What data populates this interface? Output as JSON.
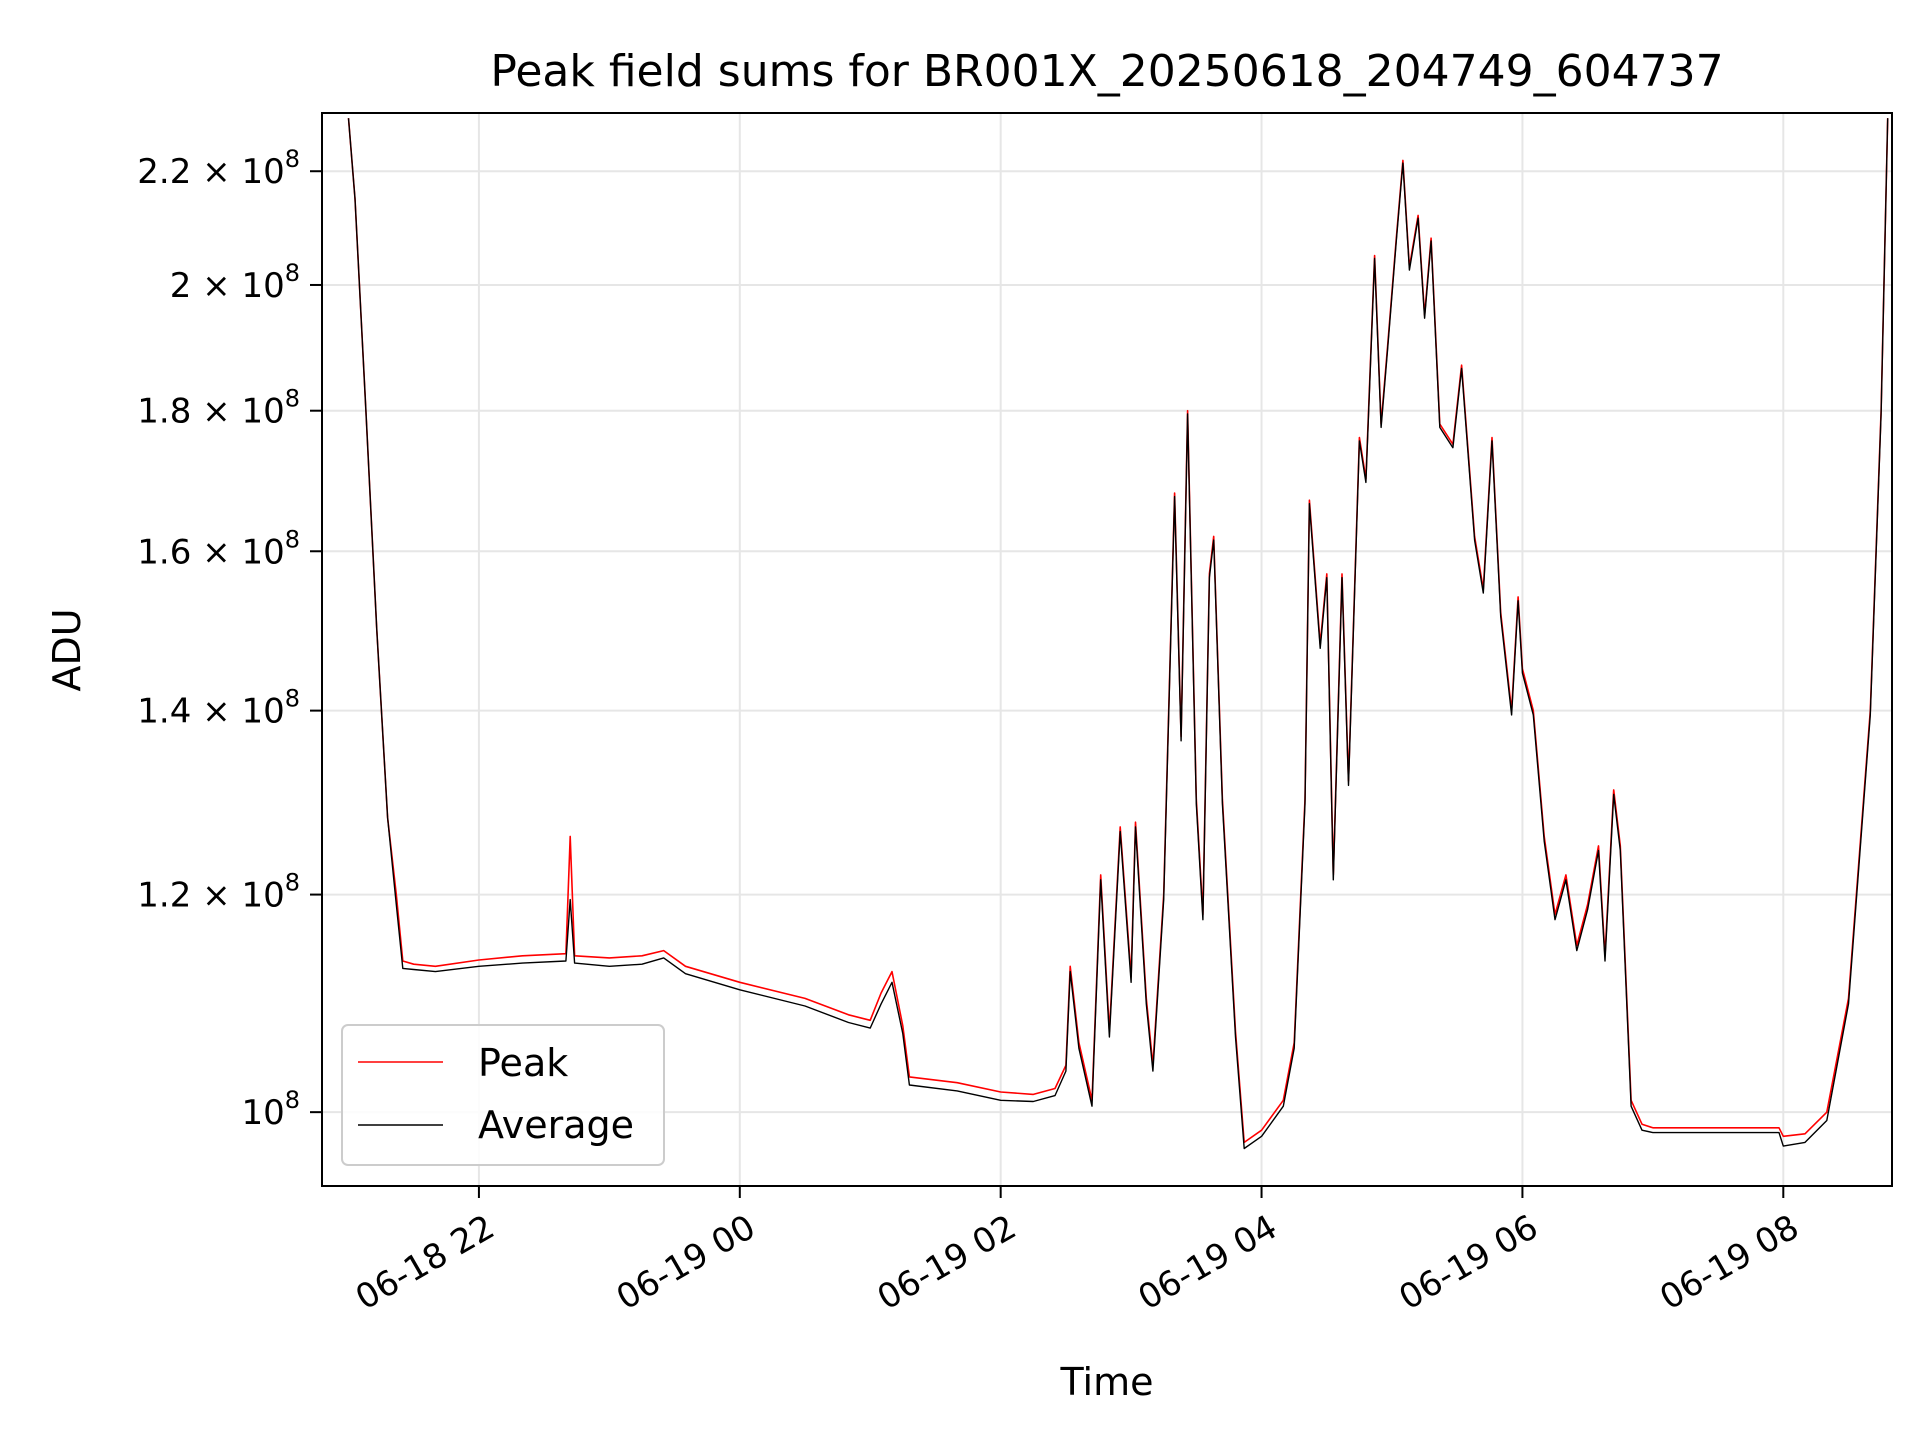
{
  "chart_data": {
    "type": "line",
    "title": "Peak field sums for BR001X_20250618_204749_604737",
    "xlabel": "Time",
    "ylabel": "ADU",
    "yscale": "log",
    "xlim": [
      "2025-06-18 20:47:49",
      "2025-06-19 08:50:00"
    ],
    "ylim": [
      94000000,
      231000000
    ],
    "grid": true,
    "legend_position": "lower-left",
    "x_ticks": [
      {
        "t": "2025-06-18 22:00",
        "label": "06-18 22"
      },
      {
        "t": "2025-06-19 00:00",
        "label": "06-19 00"
      },
      {
        "t": "2025-06-19 02:00",
        "label": "06-19 02"
      },
      {
        "t": "2025-06-19 04:00",
        "label": "06-19 04"
      },
      {
        "t": "2025-06-19 06:00",
        "label": "06-19 06"
      },
      {
        "t": "2025-06-19 08:00",
        "label": "06-19 08"
      }
    ],
    "y_ticks": [
      {
        "value": 100000000,
        "mant": "",
        "exp": "8"
      },
      {
        "value": 120000000,
        "mant": "1.2",
        "exp": "8"
      },
      {
        "value": 140000000,
        "mant": "1.4",
        "exp": "8"
      },
      {
        "value": 160000000,
        "mant": "1.6",
        "exp": "8"
      },
      {
        "value": 180000000,
        "mant": "1.8",
        "exp": "8"
      },
      {
        "value": 200000000,
        "mant": "2",
        "exp": "8"
      },
      {
        "value": 220000000,
        "mant": "2.2",
        "exp": "8"
      }
    ],
    "series": [
      {
        "name": "Peak",
        "color": "#ff0000",
        "points": [
          [
            "2025-06-18 21:00",
            230000000
          ],
          [
            "2025-06-18 21:03",
            215000000
          ],
          [
            "2025-06-18 21:08",
            180000000
          ],
          [
            "2025-06-18 21:13",
            150000000
          ],
          [
            "2025-06-18 21:18",
            128000000
          ],
          [
            "2025-06-18 21:22",
            120000000
          ],
          [
            "2025-06-18 21:25",
            113500000
          ],
          [
            "2025-06-18 21:30",
            113200000
          ],
          [
            "2025-06-18 21:40",
            113000000
          ],
          [
            "2025-06-18 22:00",
            113600000
          ],
          [
            "2025-06-18 22:20",
            114000000
          ],
          [
            "2025-06-18 22:40",
            114200000
          ],
          [
            "2025-06-18 22:42",
            126000000
          ],
          [
            "2025-06-18 22:44",
            114000000
          ],
          [
            "2025-06-18 23:00",
            113800000
          ],
          [
            "2025-06-18 23:15",
            114000000
          ],
          [
            "2025-06-18 23:25",
            114500000
          ],
          [
            "2025-06-18 23:35",
            113000000
          ],
          [
            "2025-06-19 00:00",
            111500000
          ],
          [
            "2025-06-19 00:30",
            110000000
          ],
          [
            "2025-06-19 00:50",
            108500000
          ],
          [
            "2025-06-19 01:00",
            108000000
          ],
          [
            "2025-06-19 01:05",
            110500000
          ],
          [
            "2025-06-19 01:10",
            112500000
          ],
          [
            "2025-06-19 01:15",
            107500000
          ],
          [
            "2025-06-19 01:18",
            103000000
          ],
          [
            "2025-06-19 01:40",
            102500000
          ],
          [
            "2025-06-19 02:00",
            101700000
          ],
          [
            "2025-06-19 02:15",
            101500000
          ],
          [
            "2025-06-19 02:25",
            102000000
          ],
          [
            "2025-06-19 02:30",
            104000000
          ],
          [
            "2025-06-19 02:32",
            113000000
          ],
          [
            "2025-06-19 02:36",
            106000000
          ],
          [
            "2025-06-19 02:42",
            101000000
          ],
          [
            "2025-06-19 02:46",
            122000000
          ],
          [
            "2025-06-19 02:50",
            107000000
          ],
          [
            "2025-06-19 02:55",
            127000000
          ],
          [
            "2025-06-19 03:00",
            112000000
          ],
          [
            "2025-06-19 03:02",
            127500000
          ],
          [
            "2025-06-19 03:07",
            110000000
          ],
          [
            "2025-06-19 03:10",
            104000000
          ],
          [
            "2025-06-19 03:15",
            120000000
          ],
          [
            "2025-06-19 03:20",
            168000000
          ],
          [
            "2025-06-19 03:23",
            137000000
          ],
          [
            "2025-06-19 03:26",
            180000000
          ],
          [
            "2025-06-19 03:30",
            130000000
          ],
          [
            "2025-06-19 03:33",
            118000000
          ],
          [
            "2025-06-19 03:36",
            157000000
          ],
          [
            "2025-06-19 03:38",
            162000000
          ],
          [
            "2025-06-19 03:42",
            130000000
          ],
          [
            "2025-06-19 03:48",
            107000000
          ],
          [
            "2025-06-19 03:52",
            97500000
          ],
          [
            "2025-06-19 04:00",
            98500000
          ],
          [
            "2025-06-19 04:10",
            101000000
          ],
          [
            "2025-06-19 04:15",
            106000000
          ],
          [
            "2025-06-19 04:20",
            130000000
          ],
          [
            "2025-06-19 04:22",
            167000000
          ],
          [
            "2025-06-19 04:27",
            148000000
          ],
          [
            "2025-06-19 04:30",
            157000000
          ],
          [
            "2025-06-19 04:33",
            122000000
          ],
          [
            "2025-06-19 04:37",
            157000000
          ],
          [
            "2025-06-19 04:40",
            132000000
          ],
          [
            "2025-06-19 04:45",
            176000000
          ],
          [
            "2025-06-19 04:48",
            170000000
          ],
          [
            "2025-06-19 04:52",
            205000000
          ],
          [
            "2025-06-19 04:55",
            178000000
          ],
          [
            "2025-06-19 04:58",
            190000000
          ],
          [
            "2025-06-19 05:02",
            208000000
          ],
          [
            "2025-06-19 05:05",
            222000000
          ],
          [
            "2025-06-19 05:08",
            203000000
          ],
          [
            "2025-06-19 05:12",
            212000000
          ],
          [
            "2025-06-19 05:15",
            195000000
          ],
          [
            "2025-06-19 05:18",
            208000000
          ],
          [
            "2025-06-19 05:22",
            178000000
          ],
          [
            "2025-06-19 05:28",
            175000000
          ],
          [
            "2025-06-19 05:32",
            187000000
          ],
          [
            "2025-06-19 05:38",
            162000000
          ],
          [
            "2025-06-19 05:42",
            155000000
          ],
          [
            "2025-06-19 05:46",
            176000000
          ],
          [
            "2025-06-19 05:50",
            152000000
          ],
          [
            "2025-06-19 05:55",
            140000000
          ],
          [
            "2025-06-19 05:58",
            154000000
          ],
          [
            "2025-06-19 06:00",
            145000000
          ],
          [
            "2025-06-19 06:05",
            140000000
          ],
          [
            "2025-06-19 06:10",
            126000000
          ],
          [
            "2025-06-19 06:15",
            118000000
          ],
          [
            "2025-06-19 06:20",
            122000000
          ],
          [
            "2025-06-19 06:25",
            115000000
          ],
          [
            "2025-06-19 06:30",
            119000000
          ],
          [
            "2025-06-19 06:35",
            125000000
          ],
          [
            "2025-06-19 06:38",
            114000000
          ],
          [
            "2025-06-19 06:42",
            131000000
          ],
          [
            "2025-06-19 06:45",
            125000000
          ],
          [
            "2025-06-19 06:50",
            101000000
          ],
          [
            "2025-06-19 06:55",
            99000000
          ],
          [
            "2025-06-19 07:00",
            98700000
          ],
          [
            "2025-06-19 07:30",
            98700000
          ],
          [
            "2025-06-19 07:58",
            98700000
          ],
          [
            "2025-06-19 08:00",
            98000000
          ],
          [
            "2025-06-19 08:10",
            98200000
          ],
          [
            "2025-06-19 08:20",
            100000000
          ],
          [
            "2025-06-19 08:30",
            110000000
          ],
          [
            "2025-06-19 08:40",
            140000000
          ],
          [
            "2025-06-19 08:45",
            180000000
          ],
          [
            "2025-06-19 08:48",
            230000000
          ]
        ]
      },
      {
        "name": "Average",
        "color": "#000000",
        "points": [
          [
            "2025-06-18 21:00",
            230000000
          ],
          [
            "2025-06-18 21:03",
            215000000
          ],
          [
            "2025-06-18 21:08",
            180000000
          ],
          [
            "2025-06-18 21:13",
            150000000
          ],
          [
            "2025-06-18 21:18",
            128000000
          ],
          [
            "2025-06-18 21:22",
            119000000
          ],
          [
            "2025-06-18 21:25",
            112800000
          ],
          [
            "2025-06-18 21:30",
            112700000
          ],
          [
            "2025-06-18 21:40",
            112500000
          ],
          [
            "2025-06-18 22:00",
            113000000
          ],
          [
            "2025-06-18 22:20",
            113300000
          ],
          [
            "2025-06-18 22:40",
            113500000
          ],
          [
            "2025-06-18 22:42",
            119500000
          ],
          [
            "2025-06-18 22:44",
            113300000
          ],
          [
            "2025-06-18 23:00",
            113000000
          ],
          [
            "2025-06-18 23:15",
            113200000
          ],
          [
            "2025-06-18 23:25",
            113800000
          ],
          [
            "2025-06-18 23:35",
            112300000
          ],
          [
            "2025-06-19 00:00",
            110800000
          ],
          [
            "2025-06-19 00:30",
            109300000
          ],
          [
            "2025-06-19 00:50",
            107800000
          ],
          [
            "2025-06-19 01:00",
            107300000
          ],
          [
            "2025-06-19 01:05",
            109500000
          ],
          [
            "2025-06-19 01:10",
            111500000
          ],
          [
            "2025-06-19 01:15",
            106800000
          ],
          [
            "2025-06-19 01:18",
            102300000
          ],
          [
            "2025-06-19 01:40",
            101800000
          ],
          [
            "2025-06-19 02:00",
            101000000
          ],
          [
            "2025-06-19 02:15",
            100900000
          ],
          [
            "2025-06-19 02:25",
            101400000
          ],
          [
            "2025-06-19 02:30",
            103500000
          ],
          [
            "2025-06-19 02:32",
            112500000
          ],
          [
            "2025-06-19 02:36",
            105500000
          ],
          [
            "2025-06-19 02:42",
            100500000
          ],
          [
            "2025-06-19 02:46",
            121500000
          ],
          [
            "2025-06-19 02:50",
            106500000
          ],
          [
            "2025-06-19 02:55",
            126500000
          ],
          [
            "2025-06-19 03:00",
            111500000
          ],
          [
            "2025-06-19 03:02",
            127000000
          ],
          [
            "2025-06-19 03:07",
            109500000
          ],
          [
            "2025-06-19 03:10",
            103500000
          ],
          [
            "2025-06-19 03:15",
            119500000
          ],
          [
            "2025-06-19 03:20",
            167500000
          ],
          [
            "2025-06-19 03:23",
            136500000
          ],
          [
            "2025-06-19 03:26",
            179500000
          ],
          [
            "2025-06-19 03:30",
            129500000
          ],
          [
            "2025-06-19 03:33",
            117500000
          ],
          [
            "2025-06-19 03:36",
            156500000
          ],
          [
            "2025-06-19 03:38",
            161500000
          ],
          [
            "2025-06-19 03:42",
            129500000
          ],
          [
            "2025-06-19 03:48",
            106500000
          ],
          [
            "2025-06-19 03:52",
            97000000
          ],
          [
            "2025-06-19 04:00",
            98000000
          ],
          [
            "2025-06-19 04:10",
            100500000
          ],
          [
            "2025-06-19 04:15",
            105500000
          ],
          [
            "2025-06-19 04:20",
            129500000
          ],
          [
            "2025-06-19 04:22",
            166500000
          ],
          [
            "2025-06-19 04:27",
            147500000
          ],
          [
            "2025-06-19 04:30",
            156500000
          ],
          [
            "2025-06-19 04:33",
            121500000
          ],
          [
            "2025-06-19 04:37",
            156500000
          ],
          [
            "2025-06-19 04:40",
            131500000
          ],
          [
            "2025-06-19 04:45",
            175500000
          ],
          [
            "2025-06-19 04:48",
            169500000
          ],
          [
            "2025-06-19 04:52",
            204500000
          ],
          [
            "2025-06-19 04:55",
            177500000
          ],
          [
            "2025-06-19 04:58",
            189500000
          ],
          [
            "2025-06-19 05:02",
            207500000
          ],
          [
            "2025-06-19 05:05",
            221500000
          ],
          [
            "2025-06-19 05:08",
            202500000
          ],
          [
            "2025-06-19 05:12",
            211500000
          ],
          [
            "2025-06-19 05:15",
            194500000
          ],
          [
            "2025-06-19 05:18",
            207500000
          ],
          [
            "2025-06-19 05:22",
            177500000
          ],
          [
            "2025-06-19 05:28",
            174500000
          ],
          [
            "2025-06-19 05:32",
            186500000
          ],
          [
            "2025-06-19 05:38",
            161500000
          ],
          [
            "2025-06-19 05:42",
            154500000
          ],
          [
            "2025-06-19 05:46",
            175500000
          ],
          [
            "2025-06-19 05:50",
            151500000
          ],
          [
            "2025-06-19 05:55",
            139500000
          ],
          [
            "2025-06-19 05:58",
            153500000
          ],
          [
            "2025-06-19 06:00",
            144500000
          ],
          [
            "2025-06-19 06:05",
            139500000
          ],
          [
            "2025-06-19 06:10",
            125500000
          ],
          [
            "2025-06-19 06:15",
            117500000
          ],
          [
            "2025-06-19 06:20",
            121500000
          ],
          [
            "2025-06-19 06:25",
            114500000
          ],
          [
            "2025-06-19 06:30",
            118500000
          ],
          [
            "2025-06-19 06:35",
            124500000
          ],
          [
            "2025-06-19 06:38",
            113500000
          ],
          [
            "2025-06-19 06:42",
            130500000
          ],
          [
            "2025-06-19 06:45",
            124500000
          ],
          [
            "2025-06-19 06:50",
            100500000
          ],
          [
            "2025-06-19 06:55",
            98500000
          ],
          [
            "2025-06-19 07:00",
            98300000
          ],
          [
            "2025-06-19 07:30",
            98300000
          ],
          [
            "2025-06-19 07:58",
            98300000
          ],
          [
            "2025-06-19 08:00",
            97200000
          ],
          [
            "2025-06-19 08:10",
            97500000
          ],
          [
            "2025-06-19 08:20",
            99300000
          ],
          [
            "2025-06-19 08:30",
            109500000
          ],
          [
            "2025-06-19 08:40",
            139500000
          ],
          [
            "2025-06-19 08:45",
            179500000
          ],
          [
            "2025-06-19 08:48",
            230000000
          ]
        ]
      }
    ]
  }
}
